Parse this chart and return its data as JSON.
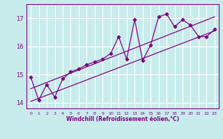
{
  "xlabel": "Windchill (Refroidissement éolien,°C)",
  "background_color": "#c8ecec",
  "grid_color": "#ffffff",
  "line_color": "#800080",
  "xlim": [
    -0.5,
    23.5
  ],
  "ylim": [
    13.8,
    17.5
  ],
  "xticks": [
    0,
    1,
    2,
    3,
    4,
    5,
    6,
    7,
    8,
    9,
    10,
    11,
    12,
    13,
    14,
    15,
    16,
    17,
    18,
    19,
    20,
    21,
    22,
    23
  ],
  "yticks": [
    14,
    15,
    16,
    17
  ],
  "scatter_x": [
    0,
    1,
    2,
    3,
    4,
    5,
    6,
    7,
    8,
    9,
    10,
    11,
    12,
    13,
    14,
    15,
    16,
    17,
    18,
    19,
    20,
    21,
    22,
    23
  ],
  "scatter_y": [
    14.9,
    14.1,
    14.65,
    14.2,
    14.85,
    15.1,
    15.2,
    15.35,
    15.45,
    15.55,
    15.75,
    16.35,
    15.55,
    16.95,
    15.5,
    16.05,
    17.05,
    17.15,
    16.7,
    16.95,
    16.75,
    16.35,
    16.35,
    16.6
  ],
  "line1_x": [
    0,
    23
  ],
  "line1_y": [
    14.05,
    16.55
  ],
  "line2_x": [
    0,
    23
  ],
  "line2_y": [
    14.5,
    17.05
  ],
  "figwidth": 3.2,
  "figheight": 2.0,
  "dpi": 100
}
